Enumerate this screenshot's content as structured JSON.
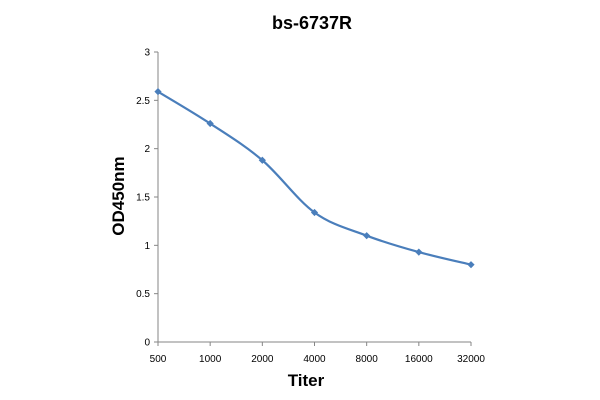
{
  "chart_data": {
    "type": "line",
    "title": "bs-6737R",
    "xlabel": "Titer",
    "ylabel": "OD450nm",
    "categories": [
      "500",
      "1000",
      "2000",
      "4000",
      "8000",
      "16000",
      "32000"
    ],
    "series": [
      {
        "values": [
          2.59,
          2.26,
          1.88,
          1.34,
          1.1,
          0.93,
          0.8
        ]
      }
    ],
    "ylim": [
      0,
      3
    ],
    "yticks": [
      "0",
      "0.5",
      "1",
      "1.5",
      "2",
      "2.5",
      "3"
    ],
    "grid": false,
    "legend": "none",
    "colors": {
      "series": "#4a7ebb",
      "axis": "#868686"
    }
  }
}
